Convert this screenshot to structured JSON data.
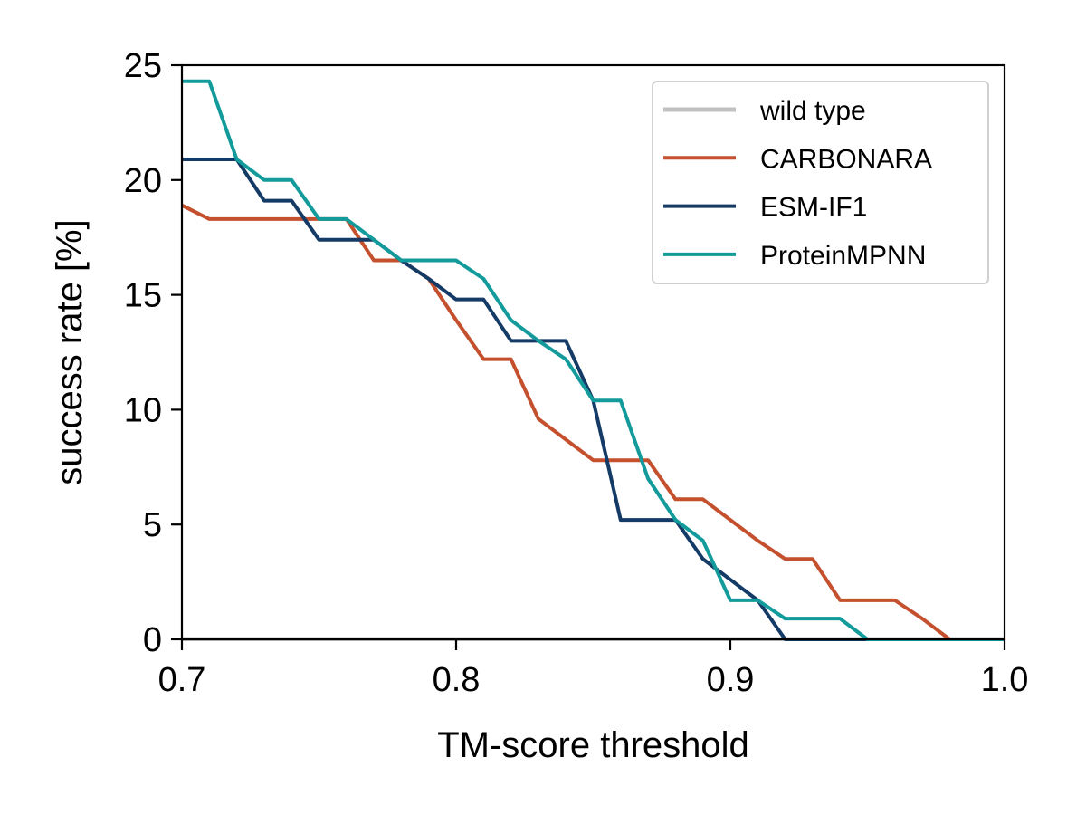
{
  "chart_data": {
    "type": "line",
    "title": "",
    "xlabel": "TM-score threshold",
    "ylabel": "success rate [%]",
    "xlim": [
      0.7,
      1.0
    ],
    "ylim": [
      0,
      25
    ],
    "xticks": [
      "0.7",
      "0.8",
      "0.9",
      "1.0"
    ],
    "yticks": [
      "0",
      "5",
      "10",
      "15",
      "20",
      "25"
    ],
    "grid": false,
    "legend_position": "top-right",
    "x": [
      0.7,
      0.71,
      0.72,
      0.73,
      0.74,
      0.75,
      0.76,
      0.77,
      0.78,
      0.79,
      0.8,
      0.81,
      0.82,
      0.83,
      0.84,
      0.85,
      0.86,
      0.87,
      0.88,
      0.89,
      0.9,
      0.91,
      0.92,
      0.93,
      0.94,
      0.95,
      0.96,
      0.97,
      0.98,
      0.99,
      1.0
    ],
    "series": [
      {
        "name": "wild type",
        "color": "#c0c0c0",
        "values": [
          0,
          0,
          0,
          0,
          0,
          0,
          0,
          0,
          0,
          0,
          0,
          0,
          0,
          0,
          0,
          0,
          0,
          0,
          0,
          0,
          0,
          0,
          0,
          0,
          0,
          0,
          0,
          0,
          0,
          0,
          0
        ]
      },
      {
        "name": "CARBONARA",
        "color": "#c4502e",
        "values": [
          18.9,
          18.3,
          18.3,
          18.3,
          18.3,
          18.3,
          18.3,
          16.5,
          16.5,
          15.7,
          13.9,
          12.2,
          12.2,
          9.6,
          8.7,
          7.8,
          7.8,
          7.8,
          6.1,
          6.1,
          5.2,
          4.3,
          3.5,
          3.5,
          1.7,
          1.7,
          1.7,
          0.9,
          0,
          0,
          0
        ]
      },
      {
        "name": "ESM-IF1",
        "color": "#143a66",
        "values": [
          20.9,
          20.9,
          20.9,
          19.1,
          19.1,
          17.4,
          17.4,
          17.4,
          16.5,
          15.7,
          14.8,
          14.8,
          13.0,
          13.0,
          13.0,
          10.4,
          5.2,
          5.2,
          5.2,
          3.5,
          2.6,
          1.7,
          0,
          0,
          0,
          0,
          0,
          0,
          0,
          0,
          0
        ]
      },
      {
        "name": "ProteinMPNN",
        "color": "#139b9b",
        "values": [
          24.3,
          24.3,
          20.9,
          20.0,
          20.0,
          18.3,
          18.3,
          17.4,
          16.5,
          16.5,
          16.5,
          15.7,
          13.9,
          13.0,
          12.2,
          10.4,
          10.4,
          7.0,
          5.2,
          4.3,
          1.7,
          1.7,
          0.9,
          0.9,
          0.9,
          0,
          0,
          0,
          0,
          0,
          0
        ]
      }
    ]
  }
}
